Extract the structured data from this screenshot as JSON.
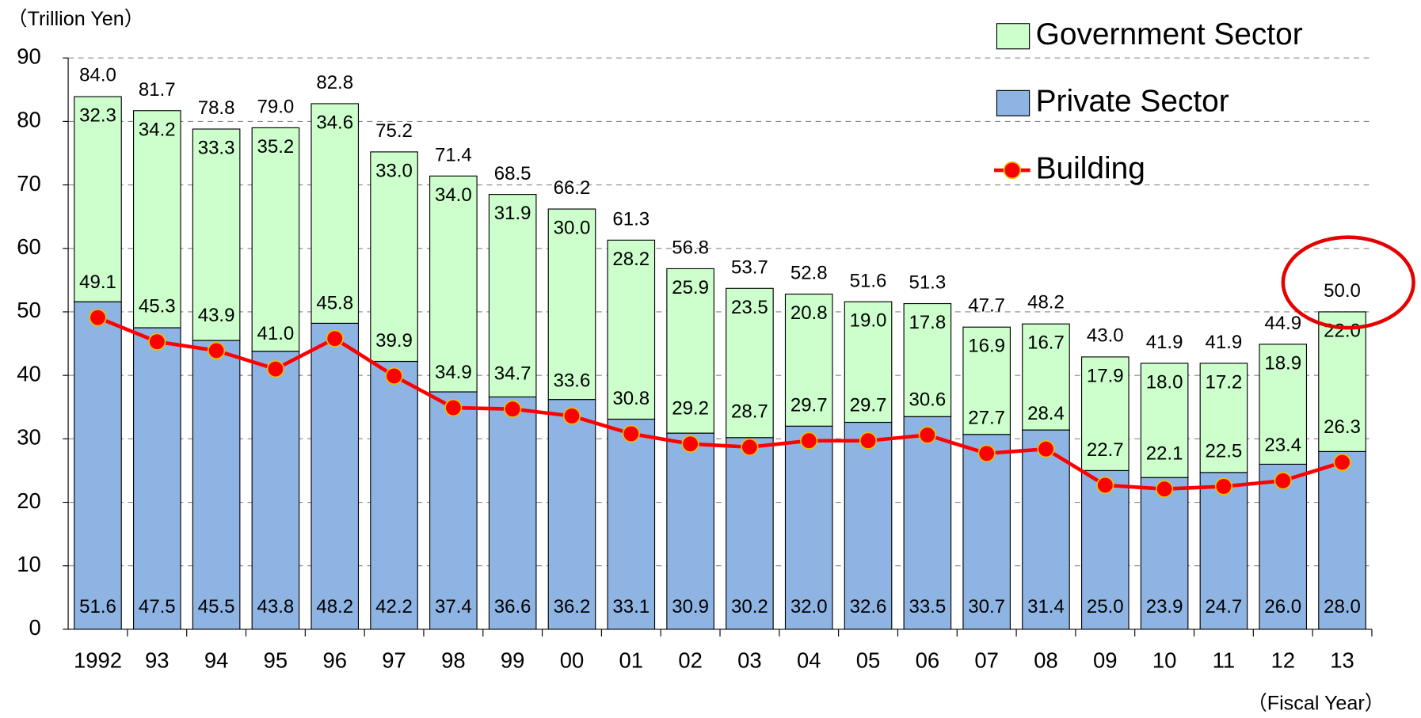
{
  "chart_data": {
    "type": "bar",
    "y_axis_label": "（Trillion Yen）",
    "x_axis_label": "（Fiscal Year）",
    "categories": [
      "1992",
      "93",
      "94",
      "95",
      "96",
      "97",
      "98",
      "99",
      "00",
      "01",
      "02",
      "03",
      "04",
      "05",
      "06",
      "07",
      "08",
      "09",
      "10",
      "11",
      "12",
      "13"
    ],
    "series": [
      {
        "name": "Private Sector",
        "color": "#8eb4e3",
        "values": [
          51.6,
          47.5,
          45.5,
          43.8,
          48.2,
          42.2,
          37.4,
          36.6,
          36.2,
          33.1,
          30.9,
          30.2,
          32.0,
          32.6,
          33.5,
          30.7,
          31.4,
          25.0,
          23.9,
          24.7,
          26.0,
          28.0
        ],
        "value_labels": [
          "51.6",
          "47.5",
          "45.5",
          "43.8",
          "48.2",
          "42.2",
          "37.4",
          "36.6",
          "36.2",
          "33.1",
          "30.9",
          "30.2",
          "32.0",
          "32.6",
          "33.5",
          "30.7",
          "31.4",
          "25.0",
          "23.9",
          "24.7",
          "26.0",
          "28.0"
        ]
      },
      {
        "name": "Government Sector",
        "color": "#ccffcc",
        "values": [
          32.3,
          34.2,
          33.3,
          35.2,
          34.6,
          33.0,
          34.0,
          31.9,
          30.0,
          28.2,
          25.9,
          23.5,
          20.8,
          19.0,
          17.8,
          16.9,
          16.7,
          17.9,
          18.0,
          17.2,
          18.9,
          22.0
        ],
        "value_labels": [
          "32.3",
          "34.2",
          "33.3",
          "35.2",
          "34.6",
          "33.0",
          "34.0",
          "31.9",
          "30.0",
          "28.2",
          "25.9",
          "23.5",
          "20.8",
          "19.0",
          "17.8",
          "16.9",
          "16.7",
          "17.9",
          "18.0",
          "17.2",
          "18.9",
          "22.0"
        ]
      },
      {
        "name": "Building",
        "color": "#ff0000",
        "kind": "line",
        "values": [
          49.1,
          45.3,
          43.9,
          41.0,
          45.8,
          39.9,
          34.9,
          34.7,
          33.6,
          30.8,
          29.2,
          28.7,
          29.7,
          29.7,
          30.6,
          27.7,
          28.4,
          22.7,
          22.1,
          22.5,
          23.4,
          26.3
        ],
        "value_labels": [
          "49.1",
          "45.3",
          "43.9",
          "41.0",
          "45.8",
          "39.9",
          "34.9",
          "34.7",
          "33.6",
          "30.8",
          "29.2",
          "28.7",
          "29.7",
          "29.7",
          "30.6",
          "27.7",
          "28.4",
          "22.7",
          "22.1",
          "22.5",
          "23.4",
          "26.3"
        ]
      }
    ],
    "totals": [
      84.0,
      81.7,
      78.8,
      79.0,
      82.8,
      75.2,
      71.4,
      68.5,
      66.2,
      61.3,
      56.8,
      53.7,
      52.8,
      51.6,
      51.3,
      47.7,
      48.2,
      43.0,
      41.9,
      41.9,
      44.9,
      50.0
    ],
    "total_labels": [
      "84.0",
      "81.7",
      "78.8",
      "79.0",
      "82.8",
      "75.2",
      "71.4",
      "68.5",
      "66.2",
      "61.3",
      "56.8",
      "53.7",
      "52.8",
      "51.6",
      "51.3",
      "47.7",
      "48.2",
      "43.0",
      "41.9",
      "41.9",
      "44.9",
      "50.0"
    ],
    "ylim": [
      0,
      90
    ],
    "yticks": [
      0,
      10,
      20,
      30,
      40,
      50,
      60,
      70,
      80,
      90
    ],
    "grid": true
  }
}
